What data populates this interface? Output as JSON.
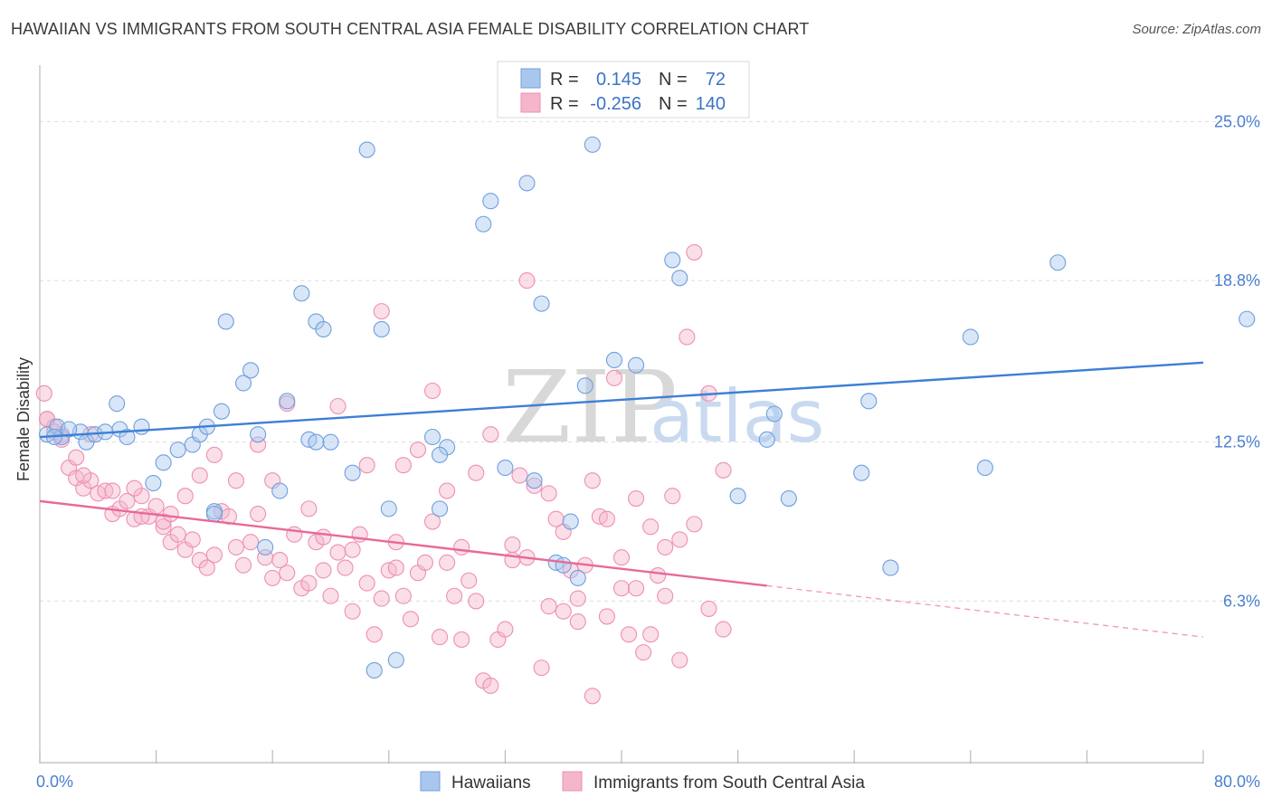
{
  "title": "HAWAIIAN VS IMMIGRANTS FROM SOUTH CENTRAL ASIA FEMALE DISABILITY CORRELATION CHART",
  "source": "Source: ZipAtlas.com",
  "watermark": {
    "zip": "ZIP",
    "atlas": "atlas"
  },
  "colors": {
    "blue": "#3d7fd6",
    "blue_fill": "#a9c7ee",
    "pink": "#e8689a",
    "pink_fill": "#f5b6cc"
  },
  "legend": {
    "rows": [
      {
        "r_label": "R =",
        "r_value": "0.145",
        "n_label": "N =",
        "n_value": "72"
      },
      {
        "r_label": "R =",
        "r_value": "-0.256",
        "n_label": "N =",
        "n_value": "140"
      }
    ]
  },
  "bottom_legend": [
    "Hawaiians",
    "Immigrants from South Central Asia"
  ],
  "chart_data": {
    "type": "scatter",
    "title": "HAWAIIAN VS IMMIGRANTS FROM SOUTH CENTRAL ASIA FEMALE DISABILITY CORRELATION CHART",
    "xlabel": "",
    "ylabel": "Female Disability",
    "xlim": [
      0,
      80
    ],
    "ylim": [
      0,
      27.2
    ],
    "x_ticks": [
      0,
      8,
      16,
      24,
      32,
      40,
      48,
      56,
      64,
      72,
      80
    ],
    "x_tick_labels": {
      "0": "0.0%",
      "80": "80.0%"
    },
    "y_ticks": [
      6.3,
      12.5,
      18.8,
      25.0
    ],
    "y_tick_labels": [
      "6.3%",
      "12.5%",
      "18.8%",
      "25.0%"
    ],
    "grid": true,
    "legend_position": "top-center",
    "series": [
      {
        "name": "Hawaiians",
        "r": 0.145,
        "n": 72,
        "trend": {
          "x": [
            0,
            80
          ],
          "y": [
            12.7,
            15.6
          ]
        },
        "points": [
          [
            0.5,
            12.8
          ],
          [
            1.2,
            13.1
          ],
          [
            1.5,
            12.7
          ],
          [
            2.8,
            12.9
          ],
          [
            3.2,
            12.5
          ],
          [
            3.8,
            12.8
          ],
          [
            4.5,
            12.9
          ],
          [
            5.5,
            13.0
          ],
          [
            6.0,
            12.7
          ],
          [
            5.3,
            14.0
          ],
          [
            7.0,
            13.1
          ],
          [
            8.5,
            11.7
          ],
          [
            9.5,
            12.2
          ],
          [
            10.5,
            12.4
          ],
          [
            11.0,
            12.8
          ],
          [
            11.5,
            13.1
          ],
          [
            12.0,
            9.8
          ],
          [
            12.5,
            13.7
          ],
          [
            12.0,
            9.7
          ],
          [
            12.8,
            17.2
          ],
          [
            14.0,
            14.8
          ],
          [
            14.5,
            15.3
          ],
          [
            15.5,
            8.4
          ],
          [
            16.5,
            10.6
          ],
          [
            17.0,
            14.1
          ],
          [
            15.0,
            12.8
          ],
          [
            18.0,
            18.3
          ],
          [
            19.0,
            17.2
          ],
          [
            19.5,
            16.9
          ],
          [
            18.5,
            12.6
          ],
          [
            20.0,
            12.5
          ],
          [
            21.5,
            11.3
          ],
          [
            22.5,
            23.9
          ],
          [
            23.5,
            16.9
          ],
          [
            19.0,
            12.5
          ],
          [
            23.0,
            3.6
          ],
          [
            24.0,
            9.9
          ],
          [
            24.5,
            4.0
          ],
          [
            27.0,
            12.7
          ],
          [
            28.0,
            12.3
          ],
          [
            27.5,
            12.0
          ],
          [
            27.5,
            9.9
          ],
          [
            30.5,
            21.0
          ],
          [
            31.0,
            21.9
          ],
          [
            32.0,
            11.5
          ],
          [
            33.5,
            22.6
          ],
          [
            34.0,
            11.0
          ],
          [
            34.5,
            17.9
          ],
          [
            35.5,
            7.8
          ],
          [
            36.5,
            9.4
          ],
          [
            36.0,
            7.7
          ],
          [
            37.0,
            7.2
          ],
          [
            37.5,
            14.7
          ],
          [
            38.0,
            24.1
          ],
          [
            39.5,
            15.7
          ],
          [
            41.0,
            15.5
          ],
          [
            43.5,
            19.6
          ],
          [
            44.0,
            18.9
          ],
          [
            48.0,
            10.4
          ],
          [
            50.0,
            12.6
          ],
          [
            50.5,
            13.6
          ],
          [
            51.5,
            10.3
          ],
          [
            56.5,
            11.3
          ],
          [
            57.0,
            14.1
          ],
          [
            58.5,
            7.6
          ],
          [
            64.0,
            16.6
          ],
          [
            65.0,
            11.5
          ],
          [
            70.0,
            19.5
          ],
          [
            83.0,
            17.3
          ],
          [
            1.0,
            12.7
          ],
          [
            7.8,
            10.9
          ],
          [
            2.0,
            13.0
          ]
        ]
      },
      {
        "name": "Immigrants from South Central Asia",
        "r": -0.256,
        "n": 140,
        "trend": {
          "x": [
            0,
            50
          ],
          "y": [
            10.2,
            6.9
          ]
        },
        "trend_dashed": {
          "x": [
            50,
            80
          ],
          "y": [
            6.9,
            4.9
          ]
        },
        "points": [
          [
            0.3,
            14.4
          ],
          [
            0.5,
            13.4
          ],
          [
            1.0,
            13.1
          ],
          [
            1.5,
            12.8
          ],
          [
            2.0,
            11.5
          ],
          [
            2.5,
            11.1
          ],
          [
            2.5,
            11.9
          ],
          [
            3.0,
            10.7
          ],
          [
            3.5,
            11.0
          ],
          [
            3.0,
            11.2
          ],
          [
            4.0,
            10.5
          ],
          [
            4.5,
            10.6
          ],
          [
            5.0,
            9.7
          ],
          [
            5.5,
            9.9
          ],
          [
            6.0,
            10.2
          ],
          [
            6.5,
            9.5
          ],
          [
            7.0,
            10.4
          ],
          [
            7.5,
            9.6
          ],
          [
            8.0,
            10.0
          ],
          [
            8.5,
            9.2
          ],
          [
            9.0,
            8.6
          ],
          [
            9.5,
            8.9
          ],
          [
            10.0,
            8.3
          ],
          [
            10.5,
            8.7
          ],
          [
            11.0,
            7.9
          ],
          [
            11.5,
            7.6
          ],
          [
            12.0,
            8.1
          ],
          [
            12.5,
            9.8
          ],
          [
            13.0,
            9.6
          ],
          [
            13.5,
            8.4
          ],
          [
            14.0,
            7.7
          ],
          [
            14.5,
            8.6
          ],
          [
            15.0,
            9.7
          ],
          [
            15.5,
            8.0
          ],
          [
            16.0,
            7.2
          ],
          [
            16.5,
            7.9
          ],
          [
            17.0,
            7.4
          ],
          [
            17.5,
            8.9
          ],
          [
            18.0,
            6.8
          ],
          [
            18.5,
            7.0
          ],
          [
            19.0,
            8.6
          ],
          [
            19.5,
            7.5
          ],
          [
            20.0,
            6.5
          ],
          [
            20.5,
            8.2
          ],
          [
            21.0,
            7.6
          ],
          [
            21.5,
            5.9
          ],
          [
            22.0,
            8.9
          ],
          [
            22.5,
            7.0
          ],
          [
            23.0,
            5.0
          ],
          [
            23.5,
            6.4
          ],
          [
            24.0,
            7.5
          ],
          [
            24.5,
            8.6
          ],
          [
            25.0,
            6.5
          ],
          [
            25.5,
            5.6
          ],
          [
            26.0,
            7.4
          ],
          [
            26.5,
            7.8
          ],
          [
            27.0,
            9.4
          ],
          [
            27.5,
            4.9
          ],
          [
            28.0,
            7.8
          ],
          [
            28.5,
            6.5
          ],
          [
            29.0,
            4.8
          ],
          [
            29.5,
            7.1
          ],
          [
            30.0,
            6.3
          ],
          [
            30.5,
            3.2
          ],
          [
            31.0,
            3.0
          ],
          [
            31.5,
            4.8
          ],
          [
            32.0,
            5.2
          ],
          [
            32.5,
            8.5
          ],
          [
            33.0,
            11.2
          ],
          [
            33.5,
            8.0
          ],
          [
            34.0,
            10.8
          ],
          [
            34.5,
            3.7
          ],
          [
            35.0,
            6.1
          ],
          [
            35.5,
            9.5
          ],
          [
            36.0,
            5.9
          ],
          [
            36.5,
            7.5
          ],
          [
            37.0,
            5.5
          ],
          [
            37.5,
            7.7
          ],
          [
            38.0,
            2.6
          ],
          [
            38.5,
            9.6
          ],
          [
            39.0,
            5.7
          ],
          [
            39.5,
            15.0
          ],
          [
            40.0,
            6.8
          ],
          [
            40.5,
            5.0
          ],
          [
            41.0,
            10.3
          ],
          [
            41.5,
            4.3
          ],
          [
            42.0,
            5.0
          ],
          [
            42.5,
            7.3
          ],
          [
            43.0,
            8.4
          ],
          [
            43.5,
            10.4
          ],
          [
            44.0,
            4.0
          ],
          [
            44.5,
            16.6
          ],
          [
            45.0,
            19.9
          ],
          [
            46.0,
            14.4
          ],
          [
            47.0,
            11.4
          ],
          [
            0.5,
            13.4
          ],
          [
            1.0,
            12.9
          ],
          [
            1.5,
            12.6
          ],
          [
            3.5,
            12.8
          ],
          [
            5.0,
            10.6
          ],
          [
            6.5,
            10.7
          ],
          [
            7.0,
            9.6
          ],
          [
            8.5,
            9.4
          ],
          [
            9.0,
            9.7
          ],
          [
            10.0,
            10.4
          ],
          [
            11.0,
            11.2
          ],
          [
            12.0,
            12.0
          ],
          [
            13.5,
            11.0
          ],
          [
            15.0,
            12.4
          ],
          [
            16.0,
            11.0
          ],
          [
            17.0,
            14.0
          ],
          [
            18.5,
            9.9
          ],
          [
            19.5,
            8.8
          ],
          [
            20.5,
            13.9
          ],
          [
            21.5,
            8.3
          ],
          [
            22.5,
            11.6
          ],
          [
            23.5,
            17.6
          ],
          [
            24.5,
            7.6
          ],
          [
            25.0,
            11.6
          ],
          [
            26.0,
            12.2
          ],
          [
            27.0,
            14.5
          ],
          [
            28.0,
            10.6
          ],
          [
            29.0,
            8.4
          ],
          [
            30.0,
            11.3
          ],
          [
            31.0,
            12.8
          ],
          [
            32.5,
            7.9
          ],
          [
            33.5,
            18.8
          ],
          [
            35.0,
            10.5
          ],
          [
            36.0,
            9.0
          ],
          [
            37.0,
            6.4
          ],
          [
            38.0,
            11.0
          ],
          [
            39.0,
            9.5
          ],
          [
            40.0,
            8.0
          ],
          [
            41.0,
            6.8
          ],
          [
            42.0,
            9.2
          ],
          [
            43.0,
            6.5
          ],
          [
            44.0,
            8.7
          ],
          [
            45.0,
            9.3
          ],
          [
            46.0,
            6.0
          ],
          [
            47.0,
            5.2
          ]
        ]
      }
    ]
  }
}
